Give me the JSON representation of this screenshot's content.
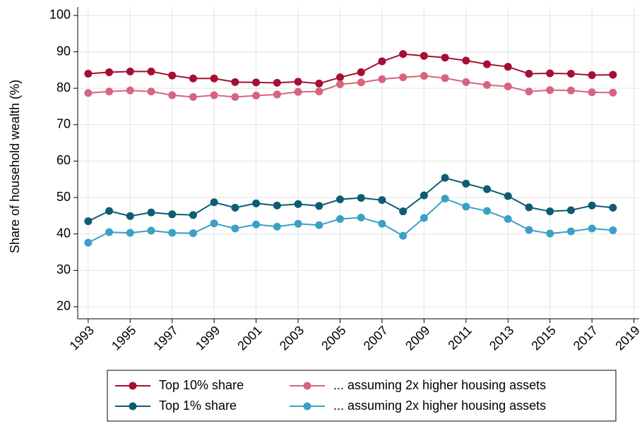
{
  "chart_data": {
    "type": "line",
    "y_label": "Share of household wealth (%)",
    "x": [
      1993,
      1994,
      1995,
      1996,
      1997,
      1998,
      1999,
      2000,
      2001,
      2002,
      2003,
      2004,
      2005,
      2006,
      2007,
      2008,
      2009,
      2010,
      2011,
      2012,
      2013,
      2014,
      2015,
      2016,
      2017,
      2018
    ],
    "series": [
      {
        "name": "Top 10% share",
        "color": "#a50f31",
        "values": [
          84.0,
          84.4,
          84.6,
          84.6,
          83.5,
          82.7,
          82.7,
          81.7,
          81.6,
          81.5,
          81.8,
          81.3,
          83.0,
          84.4,
          87.4,
          89.4,
          88.9,
          88.4,
          87.6,
          86.6,
          85.9,
          84.0,
          84.1,
          84.0,
          83.6,
          83.7
        ]
      },
      {
        "name": "... assuming 2x higher housing assets",
        "color": "#d6657f",
        "values": [
          78.7,
          79.1,
          79.4,
          79.1,
          78.1,
          77.6,
          78.1,
          77.6,
          78.0,
          78.3,
          79.0,
          79.1,
          81.1,
          81.6,
          82.5,
          83.0,
          83.4,
          82.8,
          81.7,
          80.9,
          80.5,
          79.1,
          79.5,
          79.4,
          78.9,
          78.8
        ]
      },
      {
        "name": "Top 1% share",
        "color": "#0d5c74",
        "values": [
          43.5,
          46.3,
          44.9,
          45.9,
          45.4,
          45.2,
          48.7,
          47.2,
          48.4,
          47.8,
          48.2,
          47.7,
          49.5,
          49.9,
          49.3,
          46.2,
          50.6,
          55.4,
          53.8,
          52.3,
          50.4,
          47.3,
          46.2,
          46.5,
          47.8,
          47.2
        ]
      },
      {
        "name": "... assuming 2x higher housing assets",
        "color": "#3aa0c8",
        "values": [
          37.6,
          40.5,
          40.3,
          40.9,
          40.3,
          40.2,
          42.9,
          41.5,
          42.6,
          42.0,
          42.8,
          42.4,
          44.1,
          44.5,
          42.8,
          39.5,
          44.4,
          49.7,
          47.5,
          46.3,
          44.1,
          41.1,
          40.1,
          40.7,
          41.5,
          41.0
        ]
      }
    ],
    "xlim": [
      1992.5,
      2019.25
    ],
    "xticks": [
      1993,
      1995,
      1997,
      1999,
      2001,
      2003,
      2005,
      2007,
      2009,
      2011,
      2013,
      2015,
      2017,
      2019
    ],
    "ylim": [
      16.7,
      102.3
    ],
    "yticks": [
      20,
      30,
      40,
      50,
      60,
      70,
      80,
      90,
      100
    ],
    "grid": true,
    "legend": "bottom"
  }
}
